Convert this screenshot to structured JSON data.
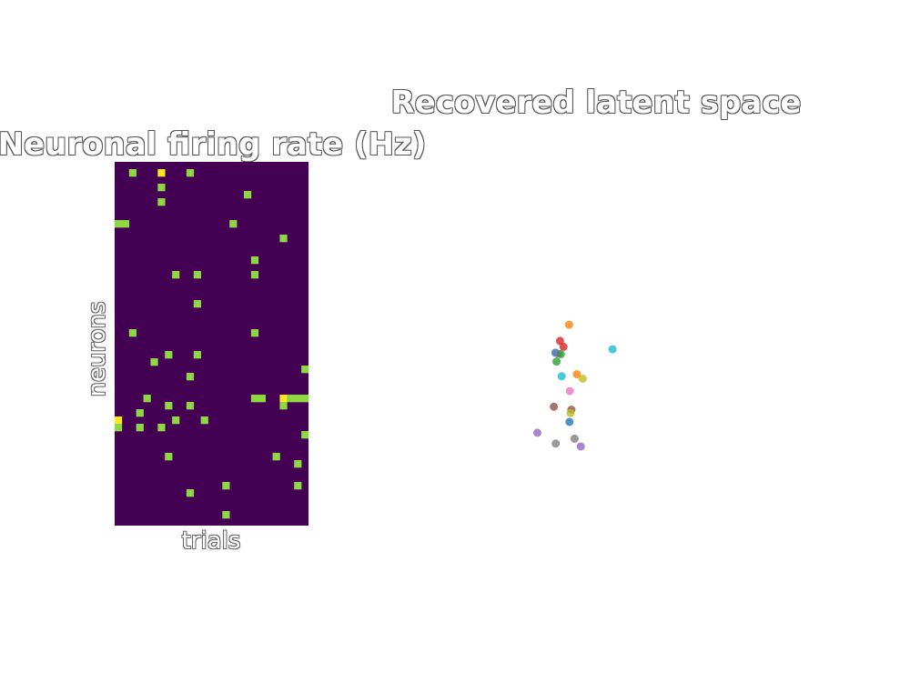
{
  "chart_data": [
    {
      "type": "heatmap",
      "title": "Neuronal firing rate (Hz)",
      "xlabel": "trials",
      "ylabel": "neurons",
      "n_rows": 50,
      "n_cols": 27,
      "background_value": 0,
      "colormap": {
        "low": "#440154",
        "mid": "#8fd744",
        "high": "#fde725"
      },
      "cells": [
        [
          1,
          2,
          1
        ],
        [
          1,
          6,
          2
        ],
        [
          1,
          10,
          1
        ],
        [
          3,
          6,
          1
        ],
        [
          4,
          18,
          1
        ],
        [
          5,
          6,
          1
        ],
        [
          8,
          0,
          1
        ],
        [
          8,
          1,
          1
        ],
        [
          8,
          16,
          1
        ],
        [
          10,
          23,
          1
        ],
        [
          13,
          19,
          1
        ],
        [
          15,
          8,
          1
        ],
        [
          15,
          11,
          1
        ],
        [
          15,
          19,
          1
        ],
        [
          19,
          11,
          1
        ],
        [
          23,
          2,
          1
        ],
        [
          23,
          19,
          1
        ],
        [
          26,
          7,
          1
        ],
        [
          26,
          11,
          1
        ],
        [
          27,
          5,
          1
        ],
        [
          28,
          26,
          1
        ],
        [
          29,
          10,
          1
        ],
        [
          32,
          4,
          1
        ],
        [
          32,
          19,
          1
        ],
        [
          32,
          20,
          1
        ],
        [
          32,
          23,
          2
        ],
        [
          32,
          24,
          1
        ],
        [
          32,
          25,
          1
        ],
        [
          32,
          26,
          1
        ],
        [
          33,
          7,
          1
        ],
        [
          33,
          10,
          1
        ],
        [
          33,
          23,
          1
        ],
        [
          34,
          3,
          1
        ],
        [
          35,
          0,
          2
        ],
        [
          35,
          8,
          1
        ],
        [
          35,
          12,
          1
        ],
        [
          36,
          0,
          1
        ],
        [
          36,
          3,
          1
        ],
        [
          36,
          6,
          1
        ],
        [
          37,
          26,
          1
        ],
        [
          40,
          7,
          1
        ],
        [
          40,
          22,
          1
        ],
        [
          41,
          25,
          1
        ],
        [
          44,
          15,
          1
        ],
        [
          44,
          25,
          1
        ],
        [
          45,
          10,
          1
        ],
        [
          48,
          15,
          1
        ]
      ]
    },
    {
      "type": "scatter",
      "title": "Recovered latent space",
      "xlabel": "",
      "ylabel": "",
      "xlim": [
        0,
        10
      ],
      "ylim": [
        0,
        10
      ],
      "grid": false,
      "point_opacity": 0.8,
      "points": [
        {
          "x": 4.31,
          "y": 6.35,
          "color": "#ff7f0e"
        },
        {
          "x": 4.08,
          "y": 6.02,
          "color": "#d62728"
        },
        {
          "x": 4.17,
          "y": 5.9,
          "color": "#d62728"
        },
        {
          "x": 3.96,
          "y": 5.78,
          "color": "#1f77b4"
        },
        {
          "x": 4.03,
          "y": 5.76,
          "color": "#9467bd"
        },
        {
          "x": 4.1,
          "y": 5.75,
          "color": "#2ca02c"
        },
        {
          "x": 3.99,
          "y": 5.6,
          "color": "#2ca02c"
        },
        {
          "x": 5.42,
          "y": 5.85,
          "color": "#17becf"
        },
        {
          "x": 4.12,
          "y": 5.3,
          "color": "#17becf"
        },
        {
          "x": 4.51,
          "y": 5.34,
          "color": "#ff7f0e"
        },
        {
          "x": 4.66,
          "y": 5.25,
          "color": "#bcbd22"
        },
        {
          "x": 4.33,
          "y": 5.0,
          "color": "#e377c2"
        },
        {
          "x": 3.92,
          "y": 4.68,
          "color": "#8c564b"
        },
        {
          "x": 4.37,
          "y": 4.62,
          "color": "#8c564b"
        },
        {
          "x": 4.35,
          "y": 4.55,
          "color": "#bcbd22"
        },
        {
          "x": 4.32,
          "y": 4.37,
          "color": "#1f77b4"
        },
        {
          "x": 3.5,
          "y": 4.15,
          "color": "#9467bd"
        },
        {
          "x": 4.45,
          "y": 4.03,
          "color": "#7f7f7f"
        },
        {
          "x": 3.97,
          "y": 3.93,
          "color": "#7f7f7f"
        },
        {
          "x": 4.61,
          "y": 3.87,
          "color": "#9467bd"
        }
      ]
    }
  ]
}
